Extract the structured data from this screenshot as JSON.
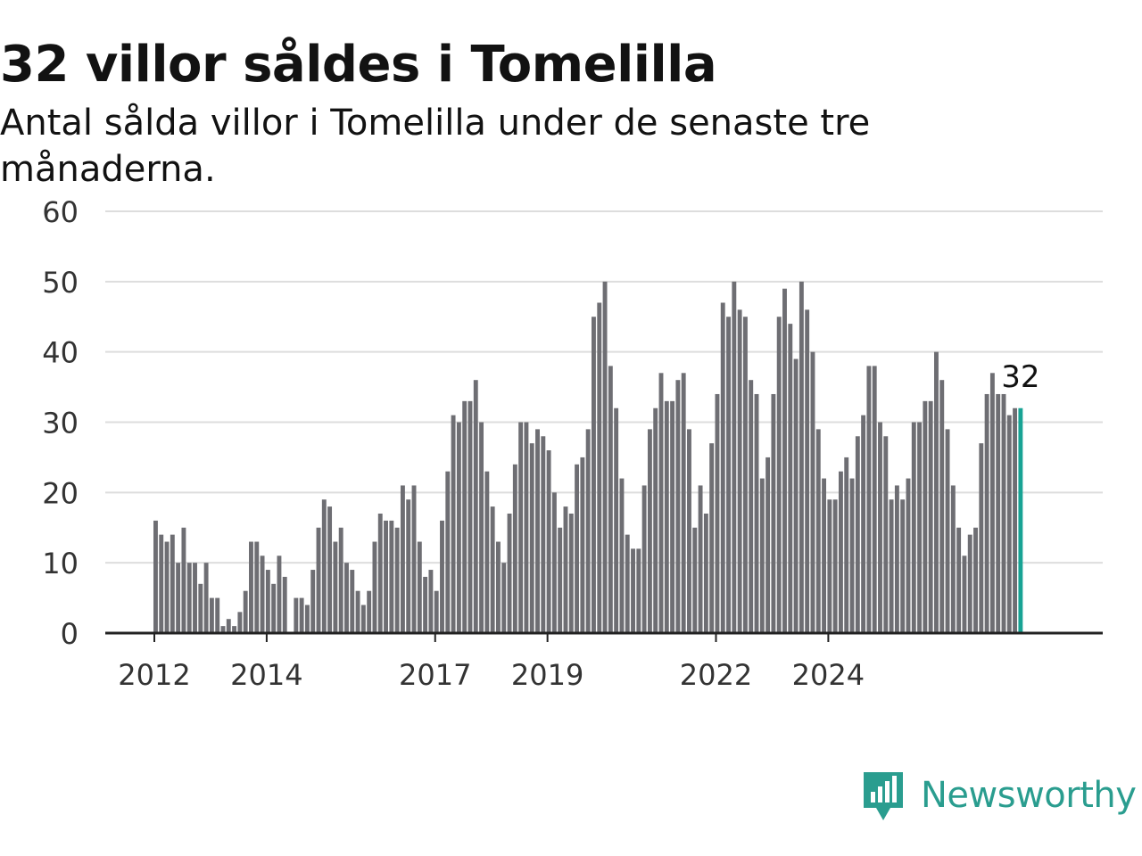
{
  "header": {
    "title": "32 villor såldes i Tomelilla",
    "subtitle": "Antal sålda villor i Tomelilla under de senaste tre månaderna."
  },
  "brand": {
    "name": "Newsworthy",
    "color": "#2a9d8f",
    "icon": "newsworthy-logo-icon"
  },
  "colors": {
    "bar": "#6e6e73",
    "highlight": "#18a394",
    "grid": "#dddddd",
    "axis": "#222222"
  },
  "chart_data": {
    "type": "bar",
    "highlight_label": "32",
    "x_ticks": [
      {
        "label": "2012",
        "index": 0
      },
      {
        "label": "2014",
        "index": 20
      },
      {
        "label": "2017",
        "index": 50
      },
      {
        "label": "2019",
        "index": 70
      },
      {
        "label": "2022",
        "index": 100
      },
      {
        "label": "2024",
        "index": 120
      }
    ],
    "ylim": [
      0,
      60
    ],
    "y_ticks": [
      0,
      10,
      20,
      30,
      40,
      50,
      60
    ],
    "grid": true,
    "values": [
      16,
      14,
      13,
      14,
      10,
      15,
      10,
      10,
      7,
      10,
      5,
      5,
      1,
      2,
      1,
      3,
      6,
      13,
      13,
      11,
      9,
      7,
      11,
      8,
      0,
      5,
      5,
      4,
      9,
      15,
      19,
      18,
      13,
      15,
      10,
      9,
      6,
      4,
      6,
      13,
      17,
      16,
      16,
      15,
      21,
      19,
      21,
      13,
      8,
      9,
      6,
      16,
      23,
      31,
      30,
      33,
      33,
      36,
      30,
      23,
      18,
      13,
      10,
      17,
      24,
      30,
      30,
      27,
      29,
      28,
      26,
      20,
      15,
      18,
      17,
      24,
      25,
      29,
      45,
      47,
      50,
      38,
      32,
      22,
      14,
      12,
      12,
      21,
      29,
      32,
      37,
      33,
      33,
      36,
      37,
      29,
      15,
      21,
      17,
      27,
      34,
      47,
      45,
      50,
      46,
      45,
      36,
      34,
      22,
      25,
      34,
      45,
      49,
      44,
      39,
      50,
      46,
      40,
      29,
      22,
      19,
      19,
      23,
      25,
      22,
      28,
      31,
      38,
      38,
      30,
      28,
      19,
      21,
      19,
      22,
      30,
      30,
      33,
      33,
      40,
      36,
      29,
      21,
      15,
      11,
      14,
      15,
      27,
      34,
      37,
      34,
      34,
      31,
      32,
      32
    ]
  }
}
